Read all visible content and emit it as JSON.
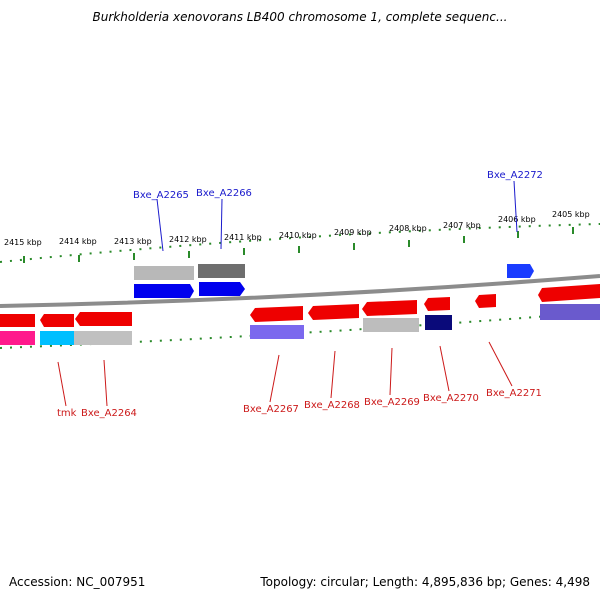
{
  "title": "Burkholderia xenovorans LB400 chromosome 1, complete sequenc...",
  "footer": {
    "accession": "Accession: NC_007951",
    "summary": "Topology: circular; Length: 4,895,836 bp; Genes: 4,498"
  },
  "colors": {
    "forward_label": "#1a1acc",
    "reverse_label": "#cc1a1a",
    "ruler": "#2a8a2a",
    "backbone": "#8c8c8c"
  },
  "scale_labels": [
    "2415 kbp",
    "2414 kbp",
    "2413 kbp",
    "2412 kbp",
    "2411 kbp",
    "2410 kbp",
    "2409 kbp",
    "2408 kbp",
    "2407 kbp",
    "2406 kbp",
    "2405 kbp"
  ],
  "forward_genes": [
    "Bxe_A2265",
    "Bxe_A2266",
    "Bxe_A2272"
  ],
  "reverse_genes": [
    "tmk",
    "Bxe_A2264",
    "Bxe_A2267",
    "Bxe_A2268",
    "Bxe_A2269",
    "Bxe_A2270",
    "Bxe_A2271"
  ]
}
